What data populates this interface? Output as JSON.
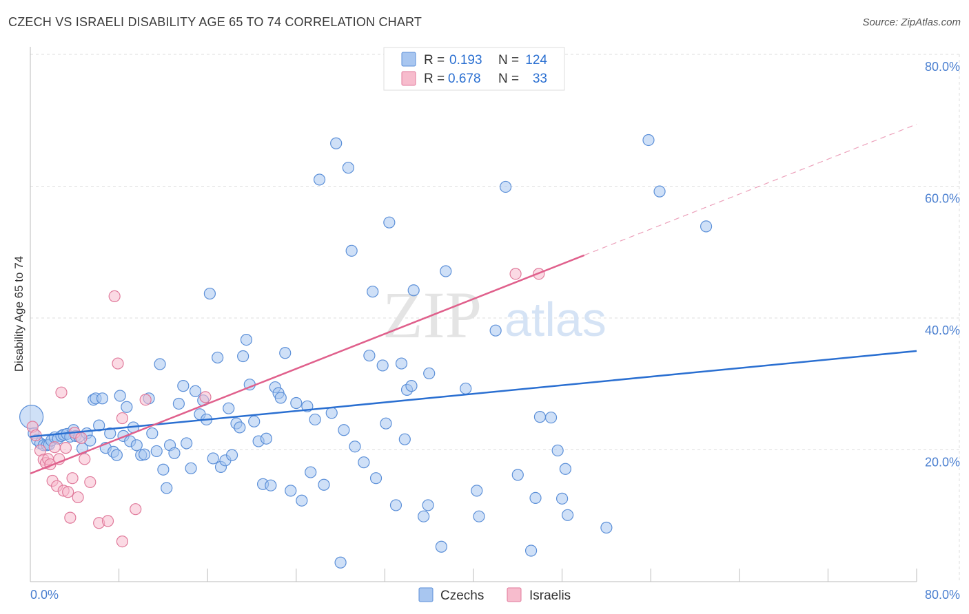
{
  "title": "CZECH VS ISRAELI DISABILITY AGE 65 TO 74 CORRELATION CHART",
  "source": "Source: ZipAtlas.com",
  "watermark": {
    "part1": "ZIP",
    "part2": "atlas"
  },
  "colors": {
    "czechs_fill": "#a8c6f0",
    "czechs_stroke": "#5b8fd8",
    "czechs_line": "#2a6fd1",
    "israelis_fill": "#f7bccd",
    "israelis_stroke": "#e07a9b",
    "israelis_line": "#e0608c",
    "value_text": "#2a6fd1",
    "grid": "#dddddd"
  },
  "legend": {
    "rows": [
      {
        "r_label": "R =",
        "r_value": "0.193",
        "n_label": "N =",
        "n_value": "124"
      },
      {
        "r_label": "R =",
        "r_value": "0.678",
        "n_label": "N =",
        "n_value": "33"
      }
    ],
    "bottom": [
      "Czechs",
      "Israelis"
    ]
  },
  "chart_data": {
    "type": "scatter",
    "title": "CZECH VS ISRAELI DISABILITY AGE 65 TO 74 CORRELATION CHART",
    "xlabel": "",
    "ylabel": "Disability Age 65 to 74",
    "xlim": [
      0,
      80
    ],
    "ylim": [
      0,
      80
    ],
    "x_tick_labels": [
      "0.0%",
      "80.0%"
    ],
    "y_ticks": [
      20,
      40,
      60,
      80
    ],
    "y_tick_labels": [
      "20.0%",
      "40.0%",
      "60.0%",
      "80.0%"
    ],
    "grid": true,
    "legend_position": "top-center",
    "series": [
      {
        "name": "Czechs",
        "r": 0.193,
        "n": 124,
        "trend": {
          "x": [
            0,
            80
          ],
          "y": [
            22.0,
            35.0
          ]
        },
        "points": [
          [
            0.1,
            25.0
          ],
          [
            0.3,
            22.5
          ],
          [
            0.6,
            21.5
          ],
          [
            0.9,
            21.0
          ],
          [
            1.2,
            20.7
          ],
          [
            1.5,
            20.7
          ],
          [
            1.7,
            20.8
          ],
          [
            1.9,
            21.4
          ],
          [
            2.2,
            21.9
          ],
          [
            2.5,
            21.7
          ],
          [
            2.8,
            22.1
          ],
          [
            3.0,
            22.3
          ],
          [
            3.3,
            22.4
          ],
          [
            3.6,
            22.0
          ],
          [
            3.9,
            23.0
          ],
          [
            4.1,
            22.1
          ],
          [
            4.4,
            22.0
          ],
          [
            4.7,
            20.2
          ],
          [
            5.1,
            22.5
          ],
          [
            5.4,
            21.4
          ],
          [
            5.7,
            27.6
          ],
          [
            5.9,
            27.8
          ],
          [
            6.2,
            23.7
          ],
          [
            6.5,
            27.8
          ],
          [
            6.8,
            20.3
          ],
          [
            7.2,
            22.5
          ],
          [
            7.5,
            19.7
          ],
          [
            7.8,
            19.2
          ],
          [
            8.1,
            28.2
          ],
          [
            8.4,
            22.1
          ],
          [
            8.7,
            26.5
          ],
          [
            9.0,
            21.3
          ],
          [
            9.3,
            23.4
          ],
          [
            9.6,
            20.7
          ],
          [
            10.0,
            19.2
          ],
          [
            10.3,
            19.3
          ],
          [
            10.7,
            27.8
          ],
          [
            11.0,
            22.5
          ],
          [
            11.4,
            19.8
          ],
          [
            11.7,
            33.0
          ],
          [
            12.0,
            17.0
          ],
          [
            12.3,
            14.2
          ],
          [
            12.6,
            20.7
          ],
          [
            13.0,
            19.5
          ],
          [
            13.4,
            27.0
          ],
          [
            13.8,
            29.7
          ],
          [
            14.1,
            21.0
          ],
          [
            14.5,
            17.2
          ],
          [
            14.9,
            28.9
          ],
          [
            15.3,
            25.4
          ],
          [
            15.6,
            27.5
          ],
          [
            15.9,
            24.6
          ],
          [
            16.2,
            43.7
          ],
          [
            16.5,
            18.7
          ],
          [
            16.9,
            34.0
          ],
          [
            17.2,
            17.4
          ],
          [
            17.6,
            18.4
          ],
          [
            17.9,
            26.3
          ],
          [
            18.2,
            19.2
          ],
          [
            18.6,
            24.0
          ],
          [
            18.9,
            23.4
          ],
          [
            19.2,
            34.2
          ],
          [
            19.5,
            36.7
          ],
          [
            19.8,
            29.9
          ],
          [
            20.2,
            24.3
          ],
          [
            20.6,
            21.3
          ],
          [
            21.0,
            14.8
          ],
          [
            21.3,
            21.7
          ],
          [
            21.7,
            14.6
          ],
          [
            22.1,
            29.5
          ],
          [
            22.4,
            28.6
          ],
          [
            22.6,
            27.9
          ],
          [
            23.0,
            34.7
          ],
          [
            23.5,
            13.8
          ],
          [
            24.0,
            27.1
          ],
          [
            24.5,
            12.3
          ],
          [
            25.0,
            26.6
          ],
          [
            25.3,
            16.6
          ],
          [
            25.7,
            24.6
          ],
          [
            26.1,
            61.0
          ],
          [
            26.5,
            14.7
          ],
          [
            27.2,
            25.6
          ],
          [
            27.6,
            66.5
          ],
          [
            28.0,
            2.9
          ],
          [
            28.3,
            23.0
          ],
          [
            28.7,
            62.8
          ],
          [
            29.0,
            50.2
          ],
          [
            29.3,
            20.5
          ],
          [
            30.1,
            18.1
          ],
          [
            30.6,
            34.3
          ],
          [
            30.9,
            44.0
          ],
          [
            31.2,
            15.7
          ],
          [
            31.8,
            32.8
          ],
          [
            32.1,
            24.0
          ],
          [
            32.4,
            54.5
          ],
          [
            33.0,
            11.6
          ],
          [
            33.5,
            33.1
          ],
          [
            33.8,
            21.6
          ],
          [
            34.0,
            29.1
          ],
          [
            34.4,
            29.7
          ],
          [
            34.6,
            44.2
          ],
          [
            35.5,
            9.9
          ],
          [
            35.9,
            11.6
          ],
          [
            36.0,
            31.6
          ],
          [
            37.1,
            5.3
          ],
          [
            37.5,
            47.1
          ],
          [
            39.3,
            29.3
          ],
          [
            40.3,
            13.8
          ],
          [
            40.5,
            9.9
          ],
          [
            42.0,
            38.1
          ],
          [
            42.9,
            59.9
          ],
          [
            44.0,
            16.2
          ],
          [
            45.2,
            4.7
          ],
          [
            45.6,
            12.7
          ],
          [
            46.0,
            25.0
          ],
          [
            47.0,
            24.9
          ],
          [
            47.6,
            19.9
          ],
          [
            48.0,
            12.6
          ],
          [
            48.3,
            17.1
          ],
          [
            48.5,
            10.1
          ],
          [
            52.0,
            8.2
          ],
          [
            55.8,
            67.0
          ],
          [
            56.8,
            59.2
          ],
          [
            61.0,
            53.9
          ]
        ]
      },
      {
        "name": "Israelis",
        "r": 0.678,
        "n": 33,
        "trend": {
          "x": [
            0,
            80
          ],
          "y": [
            16.4,
            69.4
          ],
          "solid_until_x": 50
        },
        "points": [
          [
            0.2,
            23.5
          ],
          [
            0.5,
            22.2
          ],
          [
            0.9,
            19.9
          ],
          [
            1.2,
            18.5
          ],
          [
            1.4,
            18.0
          ],
          [
            1.6,
            18.6
          ],
          [
            1.8,
            17.8
          ],
          [
            2.0,
            15.3
          ],
          [
            2.2,
            20.4
          ],
          [
            2.4,
            14.5
          ],
          [
            2.6,
            18.6
          ],
          [
            2.8,
            28.7
          ],
          [
            3.0,
            13.8
          ],
          [
            3.2,
            20.3
          ],
          [
            3.4,
            13.6
          ],
          [
            3.6,
            9.7
          ],
          [
            3.8,
            15.7
          ],
          [
            4.0,
            22.6
          ],
          [
            4.3,
            12.8
          ],
          [
            4.6,
            21.8
          ],
          [
            4.9,
            18.6
          ],
          [
            5.4,
            15.1
          ],
          [
            6.2,
            8.9
          ],
          [
            7.0,
            9.2
          ],
          [
            7.6,
            43.3
          ],
          [
            7.9,
            33.1
          ],
          [
            8.3,
            24.8
          ],
          [
            8.3,
            6.1
          ],
          [
            9.5,
            11.0
          ],
          [
            10.4,
            27.6
          ],
          [
            15.8,
            28.0
          ],
          [
            43.8,
            46.7
          ],
          [
            45.9,
            46.7
          ]
        ]
      }
    ]
  }
}
